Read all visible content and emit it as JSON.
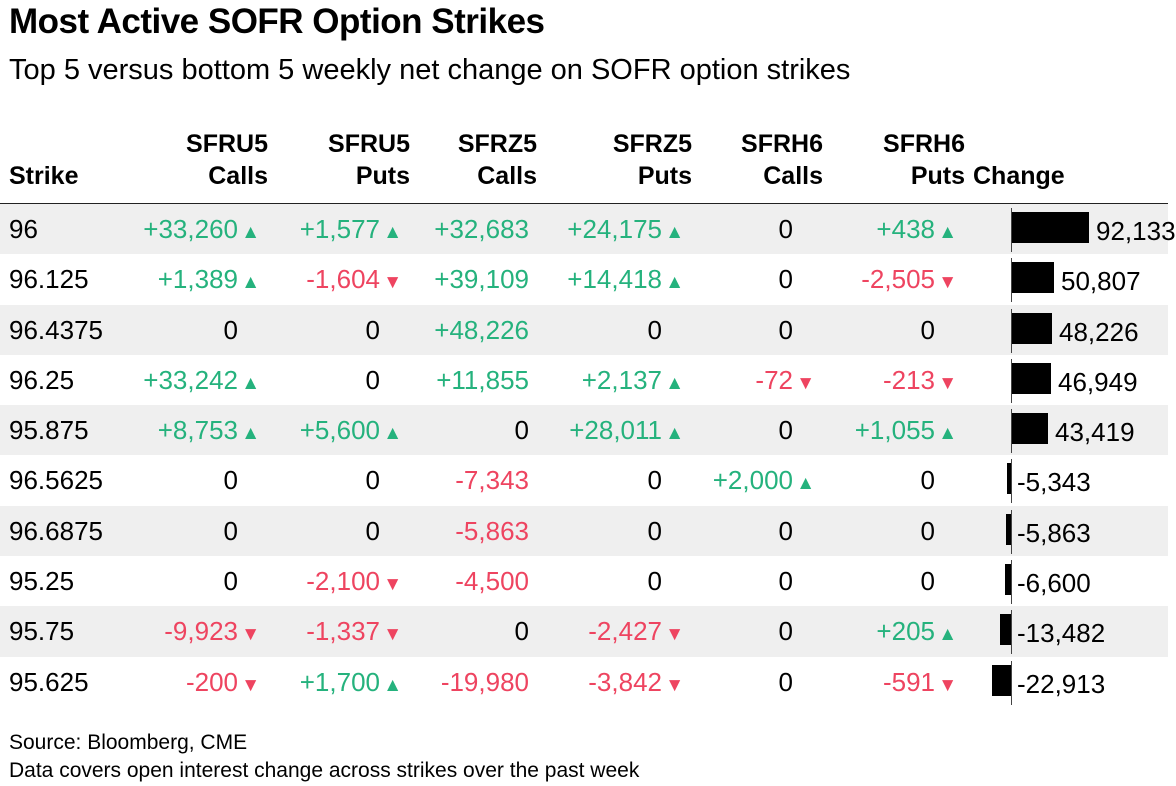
{
  "title": "Most Active SOFR Option Strikes",
  "subtitle": "Top 5 versus bottom 5 weekly net change on SOFR option strikes",
  "footer": {
    "source": "Source: Bloomberg, CME",
    "note": "Data covers open interest change across strikes over the past week"
  },
  "colors": {
    "positive": "#25b27d",
    "negative": "#ee4460",
    "bar": "#000000",
    "shade": "#efefef"
  },
  "chart_data": {
    "type": "table",
    "columns": [
      {
        "key": "strike",
        "line1": "",
        "line2": "Strike"
      },
      {
        "key": "sfru5_calls",
        "line1": "SFRU5",
        "line2": "Calls"
      },
      {
        "key": "sfru5_puts",
        "line1": "SFRU5",
        "line2": "Puts"
      },
      {
        "key": "sfrz5_calls",
        "line1": "SFRZ5",
        "line2": "Calls"
      },
      {
        "key": "sfrz5_puts",
        "line1": "SFRZ5",
        "line2": "Puts"
      },
      {
        "key": "sfrh6_calls",
        "line1": "SFRH6",
        "line2": "Calls"
      },
      {
        "key": "sfrh6_puts",
        "line1": "SFRH6",
        "line2": "Puts"
      },
      {
        "key": "change",
        "line1": "",
        "line2": "Change"
      }
    ],
    "rows": [
      {
        "strike": "96",
        "sfru5_calls": 33260,
        "sfru5_puts": 1577,
        "sfrz5_calls": 32683,
        "sfrz5_puts": 24175,
        "sfrh6_calls": 0,
        "sfrh6_puts": 438,
        "change": 92133
      },
      {
        "strike": "96.125",
        "sfru5_calls": 1389,
        "sfru5_puts": -1604,
        "sfrz5_calls": 39109,
        "sfrz5_puts": 14418,
        "sfrh6_calls": 0,
        "sfrh6_puts": -2505,
        "change": 50807
      },
      {
        "strike": "96.4375",
        "sfru5_calls": 0,
        "sfru5_puts": 0,
        "sfrz5_calls": 48226,
        "sfrz5_puts": 0,
        "sfrh6_calls": 0,
        "sfrh6_puts": 0,
        "change": 48226
      },
      {
        "strike": "96.25",
        "sfru5_calls": 33242,
        "sfru5_puts": 0,
        "sfrz5_calls": 11855,
        "sfrz5_puts": 2137,
        "sfrh6_calls": -72,
        "sfrh6_puts": -213,
        "change": 46949
      },
      {
        "strike": "95.875",
        "sfru5_calls": 8753,
        "sfru5_puts": 5600,
        "sfrz5_calls": 0,
        "sfrz5_puts": 28011,
        "sfrh6_calls": 0,
        "sfrh6_puts": 1055,
        "change": 43419
      },
      {
        "strike": "96.5625",
        "sfru5_calls": 0,
        "sfru5_puts": 0,
        "sfrz5_calls": -7343,
        "sfrz5_puts": 0,
        "sfrh6_calls": 2000,
        "sfrh6_puts": 0,
        "change": -5343
      },
      {
        "strike": "96.6875",
        "sfru5_calls": 0,
        "sfru5_puts": 0,
        "sfrz5_calls": -5863,
        "sfrz5_puts": 0,
        "sfrh6_calls": 0,
        "sfrh6_puts": 0,
        "change": -5863
      },
      {
        "strike": "95.25",
        "sfru5_calls": 0,
        "sfru5_puts": -2100,
        "sfrz5_calls": -4500,
        "sfrz5_puts": 0,
        "sfrh6_calls": 0,
        "sfrh6_puts": 0,
        "change": -6600
      },
      {
        "strike": "95.75",
        "sfru5_calls": -9923,
        "sfru5_puts": -1337,
        "sfrz5_calls": 0,
        "sfrz5_puts": -2427,
        "sfrh6_calls": 0,
        "sfrh6_puts": 205,
        "change": -13482
      },
      {
        "strike": "95.625",
        "sfru5_calls": -200,
        "sfru5_puts": 1700,
        "sfrz5_calls": -19980,
        "sfrz5_puts": -3842,
        "sfrh6_calls": 0,
        "sfrh6_puts": -591,
        "change": -22913
      }
    ],
    "arrow_columns": [
      "sfru5_calls",
      "sfru5_puts",
      "sfrz5_puts",
      "sfrh6_calls",
      "sfrh6_puts"
    ],
    "colored_columns": [
      "sfru5_calls",
      "sfru5_puts",
      "sfrz5_calls",
      "sfrz5_puts",
      "sfrh6_calls",
      "sfrh6_puts"
    ],
    "bar_column": "change",
    "bar_range": [
      -22913,
      92133
    ]
  }
}
